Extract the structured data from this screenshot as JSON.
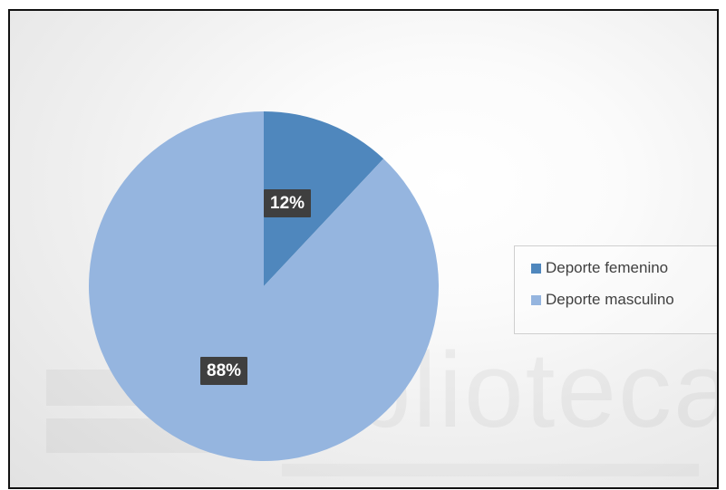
{
  "chart_data": {
    "type": "pie",
    "title": "",
    "slices": [
      {
        "label": "Deporte femenino",
        "value": 12,
        "display": "12%",
        "color": "#4f87bd"
      },
      {
        "label": "Deporte masculino",
        "value": 88,
        "display": "88%",
        "color": "#95b5df"
      }
    ],
    "start_angle_deg": 0,
    "direction": "clockwise",
    "legend": {
      "position": "right"
    },
    "data_labels": {
      "style": "dark-box-white-text"
    }
  },
  "watermark": {
    "text": "Biblioteca"
  }
}
